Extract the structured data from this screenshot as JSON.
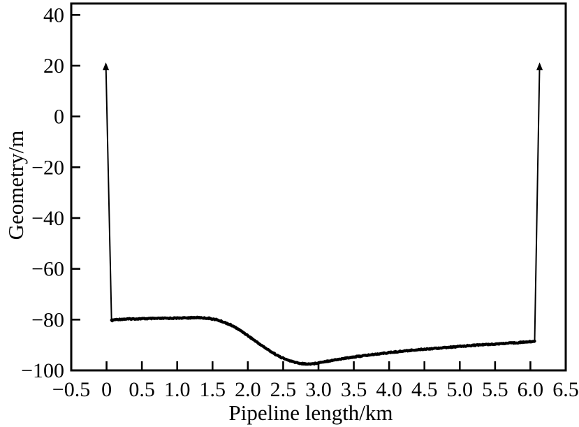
{
  "figure": {
    "background": "#ffffff",
    "frame_color": "#000000"
  },
  "chart_data": {
    "type": "line",
    "title": "",
    "xlabel": "Pipeline length/km",
    "ylabel": "Geometry/m",
    "xlim": [
      -0.5,
      6.5
    ],
    "ylim": [
      -100,
      44.5
    ],
    "grid": false,
    "legend_position": "none",
    "x_ticks": [
      {
        "v": -0.5,
        "label": "−0.5"
      },
      {
        "v": 0,
        "label": "0"
      },
      {
        "v": 0.5,
        "label": "0.5"
      },
      {
        "v": 1,
        "label": "1.0"
      },
      {
        "v": 1.5,
        "label": "1.5"
      },
      {
        "v": 2,
        "label": "2.0"
      },
      {
        "v": 2.5,
        "label": "2.5"
      },
      {
        "v": 3,
        "label": "3.0"
      },
      {
        "v": 3.5,
        "label": "3.5"
      },
      {
        "v": 4,
        "label": "4.0"
      },
      {
        "v": 4.5,
        "label": "4.5"
      },
      {
        "v": 5,
        "label": "5.0"
      },
      {
        "v": 5.5,
        "label": "5.5"
      },
      {
        "v": 6,
        "label": "6.0"
      },
      {
        "v": 6.5,
        "label": "6.5"
      }
    ],
    "y_ticks": [
      {
        "v": 40,
        "label": "40"
      },
      {
        "v": 20,
        "label": "20"
      },
      {
        "v": 0,
        "label": "0"
      },
      {
        "v": -20,
        "label": "−20"
      },
      {
        "v": -40,
        "label": "−40"
      },
      {
        "v": -60,
        "label": "−60"
      },
      {
        "v": -80,
        "label": "−80"
      },
      {
        "v": -100,
        "label": "−100"
      }
    ],
    "line_color": "#000000",
    "series": [
      {
        "name": "pipeline-elevation-profile",
        "style": "thick-noisy",
        "points": [
          [
            0.07,
            -80.4
          ],
          [
            0.12,
            -80.0
          ],
          [
            0.25,
            -79.8
          ],
          [
            0.4,
            -79.7
          ],
          [
            0.6,
            -79.6
          ],
          [
            0.8,
            -79.5
          ],
          [
            1.0,
            -79.4
          ],
          [
            1.15,
            -79.3
          ],
          [
            1.3,
            -79.2
          ],
          [
            1.45,
            -79.5
          ],
          [
            1.55,
            -80.0
          ],
          [
            1.65,
            -80.9
          ],
          [
            1.75,
            -82.0
          ],
          [
            1.85,
            -83.5
          ],
          [
            1.95,
            -85.3
          ],
          [
            2.05,
            -87.3
          ],
          [
            2.15,
            -89.3
          ],
          [
            2.25,
            -91.2
          ],
          [
            2.35,
            -93.0
          ],
          [
            2.45,
            -94.6
          ],
          [
            2.55,
            -95.8
          ],
          [
            2.65,
            -96.7
          ],
          [
            2.75,
            -97.3
          ],
          [
            2.85,
            -97.5
          ],
          [
            2.95,
            -97.3
          ],
          [
            3.05,
            -96.7
          ],
          [
            3.25,
            -95.8
          ],
          [
            3.45,
            -94.9
          ],
          [
            3.7,
            -94.0
          ],
          [
            4.0,
            -93.0
          ],
          [
            4.3,
            -92.1
          ],
          [
            4.6,
            -91.4
          ],
          [
            4.9,
            -90.8
          ],
          [
            5.2,
            -90.1
          ],
          [
            5.5,
            -89.6
          ],
          [
            5.8,
            -89.1
          ],
          [
            6.0,
            -88.7
          ],
          [
            6.06,
            -88.5
          ]
        ]
      },
      {
        "name": "inlet-riser",
        "style": "thin-arrow",
        "arrow_at": "first",
        "points": [
          [
            -0.01,
            20.5
          ],
          [
            0.07,
            -80.4
          ]
        ]
      },
      {
        "name": "outlet-riser",
        "style": "thin-arrow",
        "arrow_at": "last",
        "points": [
          [
            6.06,
            -88.5
          ],
          [
            6.13,
            20.5
          ]
        ]
      }
    ]
  }
}
